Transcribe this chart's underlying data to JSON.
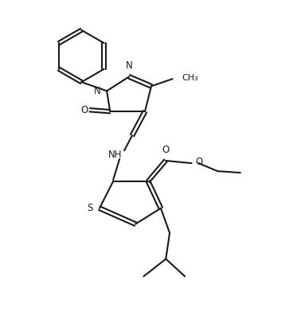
{
  "bg_color": "#ffffff",
  "line_color": "#1a1a1a",
  "line_width": 1.5,
  "font_size": 8.5,
  "figsize": [
    3.68,
    3.96
  ],
  "dpi": 100,
  "xlim": [
    0,
    9.2
  ],
  "ylim": [
    0,
    9.9
  ]
}
